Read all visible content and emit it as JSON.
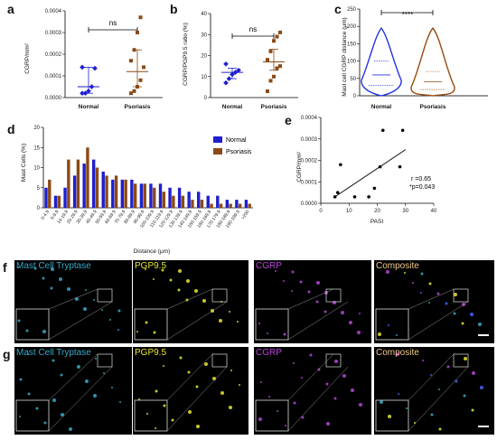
{
  "panels": {
    "a": "a",
    "b": "b",
    "c": "c",
    "d": "d",
    "e": "e",
    "f": "f",
    "g": "g"
  },
  "colors": {
    "normal": "#1f1fcf",
    "psoriasis": "#8b4a16",
    "violin_normal": "#2233dd",
    "violin_psoriasis": "#9a4a10"
  },
  "chart_data": [
    {
      "id": "a",
      "type": "scatter",
      "ylabel": "CGRP/mm²",
      "categories": [
        "Normal",
        "Psoriasis"
      ],
      "ylim": [
        0,
        0.0004
      ],
      "yticks": [
        "0.0000",
        "0.0001",
        "0.0002",
        "0.0003",
        "0.0004"
      ],
      "yticks_v": [
        0,
        0.0001,
        0.0002,
        0.0003,
        0.0004
      ],
      "series": [
        {
          "name": "Normal",
          "values": [
            2e-05,
            2e-05,
            3e-05,
            5e-05,
            0.000135,
            0.00014
          ],
          "mean": 5e-05,
          "err": [
            2e-05,
            0.00014
          ]
        },
        {
          "name": "Psoriasis",
          "values": [
            2e-05,
            3e-05,
            5e-05,
            8e-05,
            0.00014,
            0.00017,
            0.00022,
            0.0003,
            0.00037
          ],
          "mean": 0.00012,
          "err": [
            5e-05,
            0.00022
          ]
        }
      ],
      "significance": "ns"
    },
    {
      "id": "b",
      "type": "scatter",
      "ylabel": "CGRP/PGP9.5 ratio (%)",
      "categories": [
        "Normal",
        "Psoriasis"
      ],
      "ylim": [
        0,
        40
      ],
      "yticks": [
        "0",
        "10",
        "20",
        "30",
        "40"
      ],
      "yticks_v": [
        0,
        10,
        20,
        30,
        40
      ],
      "series": [
        {
          "name": "Normal",
          "values": [
            7,
            9,
            11,
            12,
            13,
            16
          ],
          "mean": 12,
          "err": [
            9,
            14
          ]
        },
        {
          "name": "Psoriasis",
          "values": [
            3,
            8,
            10,
            14,
            15,
            18,
            22,
            27,
            29,
            31
          ],
          "mean": 17,
          "err": [
            13,
            23
          ]
        }
      ],
      "significance": "ns"
    },
    {
      "id": "c",
      "type": "violin",
      "ylabel": "Mast cell CGRP distance (μm)",
      "categories": [
        "Normal",
        "Psoriasis"
      ],
      "ylim": [
        0,
        250
      ],
      "yticks": [
        "0",
        "50",
        "100",
        "150",
        "200",
        "250"
      ],
      "yticks_v": [
        0,
        50,
        100,
        150,
        200,
        250
      ],
      "series": [
        {
          "name": "Normal",
          "median": 60,
          "q1": 30,
          "q3": 100,
          "max": 195
        },
        {
          "name": "Psoriasis",
          "median": 40,
          "q1": 18,
          "q3": 70,
          "max": 195
        }
      ],
      "significance": "****"
    },
    {
      "id": "d",
      "type": "bar",
      "ylabel": "Mast Cells (%)",
      "xlabel": "Distance (μm)",
      "ylim": [
        0,
        20
      ],
      "yticks": [
        "0",
        "5",
        "10",
        "15",
        "20"
      ],
      "yticks_v": [
        0,
        5,
        10,
        15,
        20
      ],
      "categories": [
        "0-4.9",
        "5-9.9",
        "10-19.9",
        "20-29.9",
        "30-39.9",
        "40-49.9",
        "50-59.9",
        "60-69.9",
        "70-79.9",
        "80-89.9",
        "90-99.9",
        "100-109.9",
        "110-119.9",
        "120-129.9",
        "130-139.9",
        "140-149.9",
        "150-159.9",
        "160-169.9",
        "170-179.9",
        "180-189.9",
        "190-199.9",
        ">200"
      ],
      "series": [
        {
          "name": "Normal",
          "values": [
            5,
            3,
            5,
            8,
            11,
            12,
            9,
            7,
            7,
            7,
            6,
            6,
            6,
            5,
            5,
            4,
            4,
            3,
            3,
            2,
            2,
            2
          ]
        },
        {
          "name": "Psoriasis",
          "values": [
            7,
            3,
            12,
            12,
            15,
            10,
            8,
            8,
            7,
            6,
            6,
            5,
            4,
            3,
            3,
            2,
            2,
            1,
            1,
            1,
            1,
            1
          ]
        }
      ],
      "legend": "top-right"
    },
    {
      "id": "e",
      "type": "scatter",
      "ylabel": "CGRP/mm²",
      "xlabel": "PASI",
      "xlim": [
        0,
        40
      ],
      "ylim": [
        0,
        0.0004
      ],
      "xticks": [
        "0",
        "10",
        "20",
        "30",
        "40"
      ],
      "xticks_v": [
        0,
        10,
        20,
        30,
        40
      ],
      "yticks": [
        "0.0000",
        "0.0001",
        "0.0002",
        "0.0003",
        "0.0004"
      ],
      "yticks_v": [
        0,
        0.0001,
        0.0002,
        0.0003,
        0.0004
      ],
      "points": [
        [
          5,
          3e-05
        ],
        [
          6,
          5e-05
        ],
        [
          7,
          0.00018
        ],
        [
          12,
          3e-05
        ],
        [
          17,
          3e-05
        ],
        [
          19,
          7e-05
        ],
        [
          21,
          0.00017
        ],
        [
          22,
          0.00034
        ],
        [
          28,
          0.00017
        ],
        [
          29,
          0.00034
        ]
      ],
      "fit": [
        [
          5,
          3e-05
        ],
        [
          30,
          0.00025
        ]
      ],
      "annotations": [
        "r =0.65",
        "*p=0.043"
      ]
    }
  ],
  "micrographs": {
    "f": [
      "Mast Cell Tryptase",
      "PGP9.5",
      "CGRP",
      "Composite"
    ],
    "g": [
      "Mast Cell Tryptase",
      "PGP9.5",
      "CGRP",
      "Composite"
    ],
    "title_colors": [
      "#3aa8c8",
      "#e8e832",
      "#b845d8",
      "#f2c88a"
    ]
  }
}
